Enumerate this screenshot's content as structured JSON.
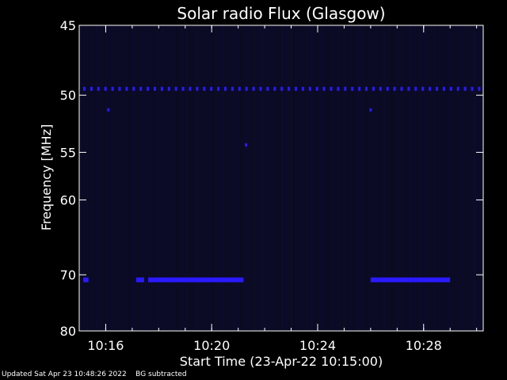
{
  "chart_data": {
    "type": "heatmap",
    "title": "Solar radio Flux (Glasgow)",
    "xlabel": "Start Time (23-Apr-22 10:15:00)",
    "ylabel": "Frequency [MHz]",
    "xlim_minutes": [
      0,
      15.25
    ],
    "ylim": [
      45,
      80
    ],
    "x_ticks": [
      {
        "label": "10:16",
        "minutes": 1
      },
      {
        "label": "10:20",
        "minutes": 5
      },
      {
        "label": "10:24",
        "minutes": 9
      },
      {
        "label": "10:28",
        "minutes": 13
      }
    ],
    "y_ticks": [
      45,
      50,
      55,
      60,
      70,
      80
    ],
    "colors": {
      "background": "#000000",
      "plot_bg": "#0a0a22",
      "signal": "#2a1aff",
      "axes": "#ffffff"
    },
    "features": [
      {
        "kind": "dashed-band",
        "freq_mhz": 49.5,
        "x_start_min": 0.15,
        "x_end_min": 15.2
      },
      {
        "kind": "band",
        "freq_mhz": 70.8,
        "x_start_min": 0.15,
        "x_end_min": 0.35
      },
      {
        "kind": "band",
        "freq_mhz": 70.8,
        "x_start_min": 2.15,
        "x_end_min": 2.45
      },
      {
        "kind": "band",
        "freq_mhz": 70.8,
        "x_start_min": 2.6,
        "x_end_min": 6.2
      },
      {
        "kind": "band",
        "freq_mhz": 70.8,
        "x_start_min": 11.0,
        "x_end_min": 14.0
      },
      {
        "kind": "dot",
        "freq_mhz": 51.2,
        "x_min": 1.1
      },
      {
        "kind": "dot",
        "freq_mhz": 51.2,
        "x_min": 11.0
      },
      {
        "kind": "dot",
        "freq_mhz": 54.3,
        "x_min": 6.3
      }
    ]
  },
  "footer": {
    "updated": "Updated Sat Apr 23 10:48:26 2022",
    "note": "BG subtracted"
  }
}
